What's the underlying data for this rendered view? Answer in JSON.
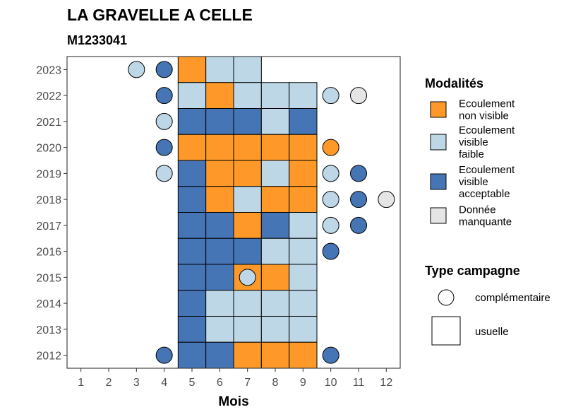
{
  "chart_data": {
    "type": "heatmap",
    "title": "LA GRAVELLE A CELLE",
    "subtitle": "M1233041",
    "xlabel": "Mois",
    "ylabel": "",
    "x_ticks": [
      "1",
      "2",
      "3",
      "4",
      "5",
      "6",
      "7",
      "8",
      "9",
      "10",
      "11",
      "12"
    ],
    "y_ticks": [
      "2012",
      "2013",
      "2014",
      "2015",
      "2016",
      "2017",
      "2018",
      "2019",
      "2020",
      "2021",
      "2022",
      "2023"
    ],
    "xlim": [
      0.5,
      12.5
    ],
    "ylim": [
      2011.5,
      2023.5
    ],
    "colors": {
      "Ecoulement non visible": "#FE9929",
      "Ecoulement visible faible": "#BDD7E7",
      "Ecoulement visible acceptable": "#4575B4",
      "Donnée manquante": "#E5E5E5"
    },
    "legend_modalites": {
      "title": "Modalités",
      "entries": [
        {
          "key": "Ecoulement non visible",
          "lines": [
            "Ecoulement",
            "non visible"
          ]
        },
        {
          "key": "Ecoulement visible faible",
          "lines": [
            "Ecoulement",
            "visible",
            "faible"
          ]
        },
        {
          "key": "Ecoulement visible acceptable",
          "lines": [
            "Ecoulement",
            "visible",
            "acceptable"
          ]
        },
        {
          "key": "Donnée manquante",
          "lines": [
            "Donnée",
            "manquante"
          ]
        }
      ]
    },
    "legend_campagne": {
      "title": "Type campagne",
      "entries": [
        {
          "shape": "circle",
          "label": "complémentaire"
        },
        {
          "shape": "square",
          "label": "usuelle"
        }
      ]
    },
    "usuelle": [
      {
        "year": 2023,
        "month": 5,
        "value": "Ecoulement non visible"
      },
      {
        "year": 2023,
        "month": 6,
        "value": "Ecoulement visible faible"
      },
      {
        "year": 2023,
        "month": 7,
        "value": "Ecoulement visible faible"
      },
      {
        "year": 2022,
        "month": 5,
        "value": "Ecoulement visible faible"
      },
      {
        "year": 2022,
        "month": 6,
        "value": "Ecoulement non visible"
      },
      {
        "year": 2022,
        "month": 7,
        "value": "Ecoulement visible faible"
      },
      {
        "year": 2022,
        "month": 8,
        "value": "Ecoulement visible faible"
      },
      {
        "year": 2022,
        "month": 9,
        "value": "Ecoulement visible faible"
      },
      {
        "year": 2021,
        "month": 5,
        "value": "Ecoulement visible acceptable"
      },
      {
        "year": 2021,
        "month": 6,
        "value": "Ecoulement visible acceptable"
      },
      {
        "year": 2021,
        "month": 7,
        "value": "Ecoulement visible acceptable"
      },
      {
        "year": 2021,
        "month": 8,
        "value": "Ecoulement visible faible"
      },
      {
        "year": 2021,
        "month": 9,
        "value": "Ecoulement visible acceptable"
      },
      {
        "year": 2020,
        "month": 5,
        "value": "Ecoulement non visible"
      },
      {
        "year": 2020,
        "month": 6,
        "value": "Ecoulement non visible"
      },
      {
        "year": 2020,
        "month": 7,
        "value": "Ecoulement non visible"
      },
      {
        "year": 2020,
        "month": 8,
        "value": "Ecoulement non visible"
      },
      {
        "year": 2020,
        "month": 9,
        "value": "Ecoulement non visible"
      },
      {
        "year": 2019,
        "month": 5,
        "value": "Ecoulement visible acceptable"
      },
      {
        "year": 2019,
        "month": 6,
        "value": "Ecoulement non visible"
      },
      {
        "year": 2019,
        "month": 7,
        "value": "Ecoulement non visible"
      },
      {
        "year": 2019,
        "month": 8,
        "value": "Ecoulement visible faible"
      },
      {
        "year": 2019,
        "month": 9,
        "value": "Ecoulement non visible"
      },
      {
        "year": 2018,
        "month": 5,
        "value": "Ecoulement visible acceptable"
      },
      {
        "year": 2018,
        "month": 6,
        "value": "Ecoulement non visible"
      },
      {
        "year": 2018,
        "month": 7,
        "value": "Ecoulement visible faible"
      },
      {
        "year": 2018,
        "month": 8,
        "value": "Ecoulement non visible"
      },
      {
        "year": 2018,
        "month": 9,
        "value": "Ecoulement non visible"
      },
      {
        "year": 2017,
        "month": 5,
        "value": "Ecoulement visible acceptable"
      },
      {
        "year": 2017,
        "month": 6,
        "value": "Ecoulement visible acceptable"
      },
      {
        "year": 2017,
        "month": 7,
        "value": "Ecoulement non visible"
      },
      {
        "year": 2017,
        "month": 8,
        "value": "Ecoulement visible acceptable"
      },
      {
        "year": 2017,
        "month": 9,
        "value": "Ecoulement visible faible"
      },
      {
        "year": 2016,
        "month": 5,
        "value": "Ecoulement visible acceptable"
      },
      {
        "year": 2016,
        "month": 6,
        "value": "Ecoulement visible acceptable"
      },
      {
        "year": 2016,
        "month": 7,
        "value": "Ecoulement visible acceptable"
      },
      {
        "year": 2016,
        "month": 8,
        "value": "Ecoulement visible faible"
      },
      {
        "year": 2016,
        "month": 9,
        "value": "Ecoulement visible faible"
      },
      {
        "year": 2015,
        "month": 5,
        "value": "Ecoulement visible acceptable"
      },
      {
        "year": 2015,
        "month": 6,
        "value": "Ecoulement visible acceptable"
      },
      {
        "year": 2015,
        "month": 7,
        "value": "Ecoulement non visible"
      },
      {
        "year": 2015,
        "month": 8,
        "value": "Ecoulement non visible"
      },
      {
        "year": 2015,
        "month": 9,
        "value": "Ecoulement visible faible"
      },
      {
        "year": 2014,
        "month": 5,
        "value": "Ecoulement visible acceptable"
      },
      {
        "year": 2014,
        "month": 6,
        "value": "Ecoulement visible faible"
      },
      {
        "year": 2014,
        "month": 7,
        "value": "Ecoulement visible faible"
      },
      {
        "year": 2014,
        "month": 8,
        "value": "Ecoulement visible faible"
      },
      {
        "year": 2014,
        "month": 9,
        "value": "Ecoulement visible faible"
      },
      {
        "year": 2013,
        "month": 5,
        "value": "Ecoulement visible acceptable"
      },
      {
        "year": 2013,
        "month": 6,
        "value": "Ecoulement visible faible"
      },
      {
        "year": 2013,
        "month": 7,
        "value": "Ecoulement visible faible"
      },
      {
        "year": 2013,
        "month": 8,
        "value": "Ecoulement visible faible"
      },
      {
        "year": 2013,
        "month": 9,
        "value": "Ecoulement visible faible"
      },
      {
        "year": 2012,
        "month": 5,
        "value": "Ecoulement visible acceptable"
      },
      {
        "year": 2012,
        "month": 6,
        "value": "Ecoulement visible acceptable"
      },
      {
        "year": 2012,
        "month": 7,
        "value": "Ecoulement non visible"
      },
      {
        "year": 2012,
        "month": 8,
        "value": "Ecoulement non visible"
      },
      {
        "year": 2012,
        "month": 9,
        "value": "Ecoulement non visible"
      }
    ],
    "complementaire": [
      {
        "year": 2023,
        "month": 3,
        "value": "Ecoulement visible faible"
      },
      {
        "year": 2023,
        "month": 4,
        "value": "Ecoulement visible acceptable"
      },
      {
        "year": 2022,
        "month": 4,
        "value": "Ecoulement visible acceptable"
      },
      {
        "year": 2022,
        "month": 10,
        "value": "Ecoulement visible faible"
      },
      {
        "year": 2022,
        "month": 11,
        "value": "Donnée manquante"
      },
      {
        "year": 2021,
        "month": 4,
        "value": "Ecoulement visible faible"
      },
      {
        "year": 2020,
        "month": 4,
        "value": "Ecoulement visible acceptable"
      },
      {
        "year": 2020,
        "month": 10,
        "value": "Ecoulement non visible"
      },
      {
        "year": 2019,
        "month": 4,
        "value": "Ecoulement visible faible"
      },
      {
        "year": 2019,
        "month": 10,
        "value": "Ecoulement visible faible"
      },
      {
        "year": 2019,
        "month": 11,
        "value": "Ecoulement visible acceptable"
      },
      {
        "year": 2018,
        "month": 10,
        "value": "Ecoulement visible faible"
      },
      {
        "year": 2018,
        "month": 11,
        "value": "Ecoulement visible acceptable"
      },
      {
        "year": 2018,
        "month": 12,
        "value": "Donnée manquante"
      },
      {
        "year": 2017,
        "month": 10,
        "value": "Ecoulement visible faible"
      },
      {
        "year": 2017,
        "month": 11,
        "value": "Ecoulement visible acceptable"
      },
      {
        "year": 2016,
        "month": 10,
        "value": "Ecoulement visible acceptable"
      },
      {
        "year": 2015,
        "month": 7,
        "value": "Ecoulement visible faible"
      },
      {
        "year": 2012,
        "month": 4,
        "value": "Ecoulement visible acceptable"
      },
      {
        "year": 2012,
        "month": 10,
        "value": "Ecoulement visible acceptable"
      }
    ]
  }
}
